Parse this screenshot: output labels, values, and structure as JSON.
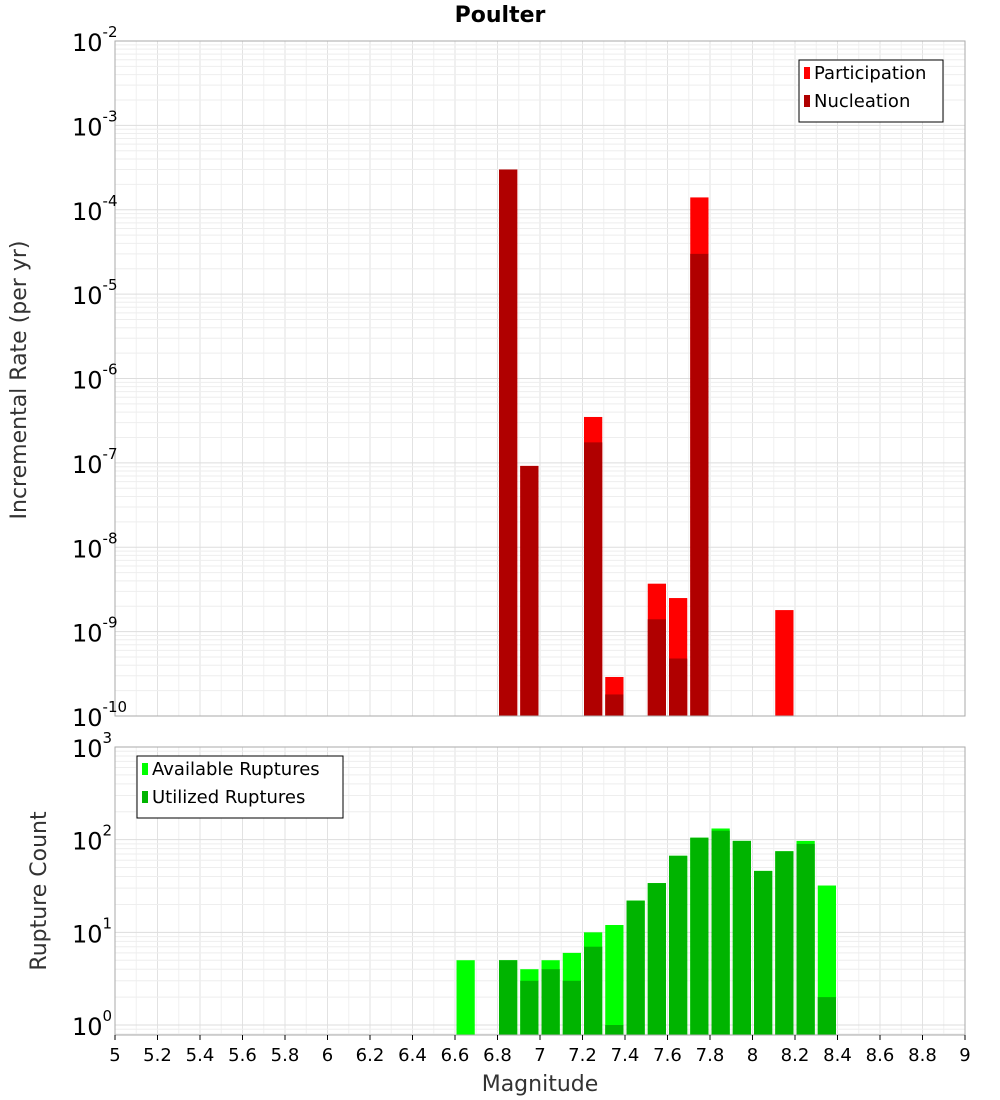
{
  "chart_data": {
    "title": "Poulter",
    "type": "bar",
    "xlabel": "Magnitude",
    "xlim": [
      5,
      9
    ],
    "x_ticks": [
      "5",
      "5.2",
      "5.4",
      "5.6",
      "5.8",
      "6",
      "6.2",
      "6.4",
      "6.6",
      "6.8",
      "7",
      "7.2",
      "7.4",
      "7.6",
      "7.8",
      "8",
      "8.2",
      "8.4",
      "8.6",
      "8.8",
      "9"
    ],
    "bin_width": 0.1,
    "panels": [
      {
        "ylabel": "Incremental Rate (per yr)",
        "yscale": "log",
        "ylim": [
          1e-10,
          0.01
        ],
        "y_exponents": [
          "-10",
          "-9",
          "-8",
          "-7",
          "-6",
          "-5",
          "-4",
          "-3",
          "-2"
        ],
        "legend_position": "top-right",
        "series": [
          {
            "name": "Participation",
            "color": "#ff0000",
            "x": [
              6.85,
              6.95,
              7.25,
              7.35,
              7.55,
              7.65,
              7.75,
              8.15
            ],
            "values": [
              0.0003,
              9.2e-08,
              3.5e-07,
              2.9e-10,
              3.7e-09,
              2.5e-09,
              0.00014,
              1.8e-09
            ]
          },
          {
            "name": "Nucleation",
            "color": "#b00000",
            "x": [
              6.85,
              6.95,
              7.25,
              7.35,
              7.55,
              7.65,
              7.75
            ],
            "values": [
              0.0003,
              9.2e-08,
              1.75e-07,
              1.8e-10,
              1.4e-09,
              4.8e-10,
              3e-05
            ]
          }
        ]
      },
      {
        "ylabel": "Rupture Count",
        "yscale": "log",
        "ylim": [
          0.78,
          1000
        ],
        "y_exponents": [
          "0",
          "1",
          "2",
          "3"
        ],
        "legend_position": "top-left",
        "series": [
          {
            "name": "Available Ruptures",
            "color": "#00ff00",
            "x": [
              6.65,
              6.85,
              6.95,
              7.05,
              7.15,
              7.25,
              7.35,
              7.45,
              7.55,
              7.65,
              7.75,
              7.85,
              7.95,
              8.05,
              8.15,
              8.25,
              8.35
            ],
            "values": [
              5,
              5,
              4,
              5,
              6,
              10,
              12,
              22,
              34,
              67,
              105,
              132,
              97,
              46,
              75,
              97,
              32
            ]
          },
          {
            "name": "Utilized Ruptures",
            "color": "#00b400",
            "x": [
              6.85,
              6.95,
              7.05,
              7.15,
              7.25,
              7.35,
              7.45,
              7.55,
              7.65,
              7.75,
              7.85,
              7.95,
              8.05,
              8.15,
              8.25,
              8.35
            ],
            "values": [
              5,
              3,
              4,
              3,
              7,
              1,
              22,
              34,
              67,
              105,
              125,
              97,
              46,
              75,
              90,
              2
            ]
          }
        ]
      }
    ]
  }
}
